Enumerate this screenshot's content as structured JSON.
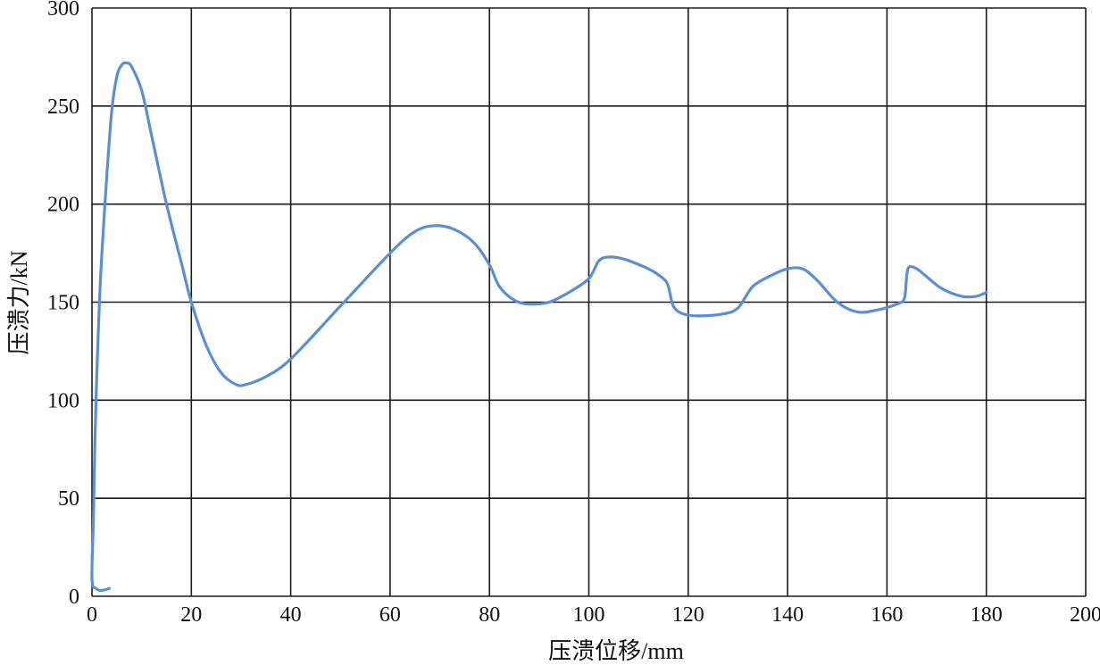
{
  "chart_data": {
    "type": "line",
    "title": "",
    "xlabel": "压溃位移/mm",
    "ylabel": "压溃力/kN",
    "xlim": [
      0,
      200
    ],
    "ylim": [
      0,
      300
    ],
    "xticks": [
      0,
      20,
      40,
      60,
      80,
      100,
      120,
      140,
      160,
      180,
      200
    ],
    "yticks": [
      0,
      50,
      100,
      150,
      200,
      250,
      300
    ],
    "xtick_labels": [
      "0",
      "20",
      "40",
      "60",
      "80",
      "100",
      "120",
      "140",
      "160",
      "180",
      "200"
    ],
    "ytick_labels": [
      "0",
      "50",
      "100",
      "150",
      "200",
      "250",
      "300"
    ],
    "grid": true,
    "legend": "none",
    "line_color": "#5b8fd3",
    "series": [
      {
        "x": [
          3.5,
          2,
          0.8,
          0,
          0.3,
          0.6,
          1,
          1.5,
          2,
          3,
          4,
          5,
          6,
          7,
          8,
          10,
          12,
          15,
          18,
          20,
          23,
          26,
          29,
          31,
          35,
          40,
          50,
          60,
          65,
          69,
          73,
          77,
          80,
          82,
          85,
          88,
          92,
          96,
          100,
          102,
          104,
          107,
          112,
          115,
          116,
          117,
          119,
          122,
          127,
          130,
          133,
          137,
          140,
          143,
          146,
          150,
          154,
          158,
          162,
          163.5,
          164,
          164.5,
          166,
          168,
          171,
          175,
          178,
          180
        ],
        "y": [
          4,
          3,
          4,
          9,
          40,
          80,
          115,
          150,
          175,
          215,
          248,
          265,
          271,
          272,
          270,
          258,
          235,
          200,
          170,
          150,
          128,
          114,
          108,
          108,
          112,
          121,
          148,
          175,
          186,
          189,
          187,
          180,
          169,
          158,
          151,
          149,
          150,
          155,
          162,
          171,
          173,
          172,
          167,
          162,
          158,
          148,
          144,
          143,
          144,
          147,
          158,
          164,
          167,
          167,
          161,
          150,
          145,
          146,
          149,
          152,
          164,
          168,
          167,
          163,
          157,
          153,
          153,
          155
        ]
      }
    ]
  }
}
